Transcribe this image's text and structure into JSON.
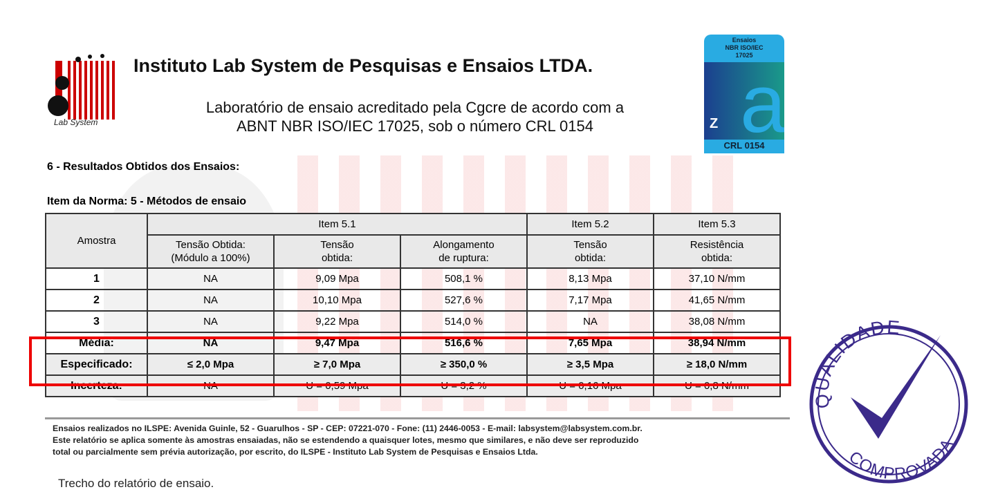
{
  "header": {
    "logo_text": "Lab System",
    "title": "Instituto Lab System de Pesquisas e Ensaios LTDA.",
    "subtitle_line1": "Laboratório de ensaio acreditado pela Cgcre de acordo com a",
    "subtitle_line2": "ABNT NBR ISO/IEC 17025, sob o número CRL 0154"
  },
  "accreditation": {
    "top": [
      "Ensaios",
      "NBR ISO/IEC",
      "17025"
    ],
    "code": "CRL 0154",
    "colors": {
      "light": "#29abe2",
      "dark": "#1b3f8f",
      "teal": "#1a9a8a"
    }
  },
  "section_title": "6 - Resultados Obtidos dos Ensaios:",
  "item_norma": "Item da Norma: 5 - Métodos de ensaio",
  "table": {
    "amostra": "Amostra",
    "groups": [
      "Item 5.1",
      "Item 5.2",
      "Item 5.3"
    ],
    "subheaders": [
      [
        "Tensão Obtida:",
        "(Módulo a 100%)"
      ],
      [
        "Tensão",
        "obtida:"
      ],
      [
        "Alongamento",
        "de ruptura:"
      ],
      [
        "Tensão",
        "obtida:"
      ],
      [
        "Resistência",
        "obtida:"
      ]
    ],
    "rows": [
      {
        "label": "1",
        "cells": [
          "NA",
          "9,09 Mpa",
          "508,1 %",
          "8,13 Mpa",
          "37,10 N/mm"
        ]
      },
      {
        "label": "2",
        "cells": [
          "NA",
          "10,10 Mpa",
          "527,6 %",
          "7,17 Mpa",
          "41,65 N/mm"
        ]
      },
      {
        "label": "3",
        "cells": [
          "NA",
          "9,22 Mpa",
          "514,0 %",
          "NA",
          "38,08 N/mm"
        ]
      },
      {
        "label": "Média:",
        "cells": [
          "NA",
          "9,47 Mpa",
          "516,6 %",
          "7,65 Mpa",
          "38,94 N/mm"
        ]
      },
      {
        "label": "Especificado:",
        "cells": [
          "≤ 2,0 Mpa",
          "≥ 7,0 Mpa",
          "≥ 350,0 %",
          "≥ 3,5 Mpa",
          "≥ 18,0 N/mm"
        ]
      },
      {
        "label": "Incerteza:",
        "cells": [
          "NA",
          "U = 0,59  Mpa",
          "U = 3,2 %",
          "U = 0,16 Mpa",
          "U = 0,8  N/mm"
        ]
      }
    ]
  },
  "footer": [
    "Ensaios realizados no ILSPE:  Avenida Guinle, 52 - Guarulhos - SP - CEP: 07221-070 - Fone: (11) 2446-0053 - E-mail:  labsystem@labsystem.com.br.",
    "Este relatório se aplica somente às amostras ensaiadas, não se estendendo a quaisquer lotes, mesmo  que similares, e não deve ser reproduzido",
    "total ou parcialmente sem prévia autorização, por escrito, do ILSPE  - Instituto Lab System  de Pesquisas e Ensaios Ltda."
  ],
  "caption": "Trecho do relatório de ensaio.",
  "stamp": {
    "top": "QUALIDADE",
    "bottom": "COMPROVADA",
    "color": "#3b2a8a"
  },
  "highlight_color": "#e00000"
}
